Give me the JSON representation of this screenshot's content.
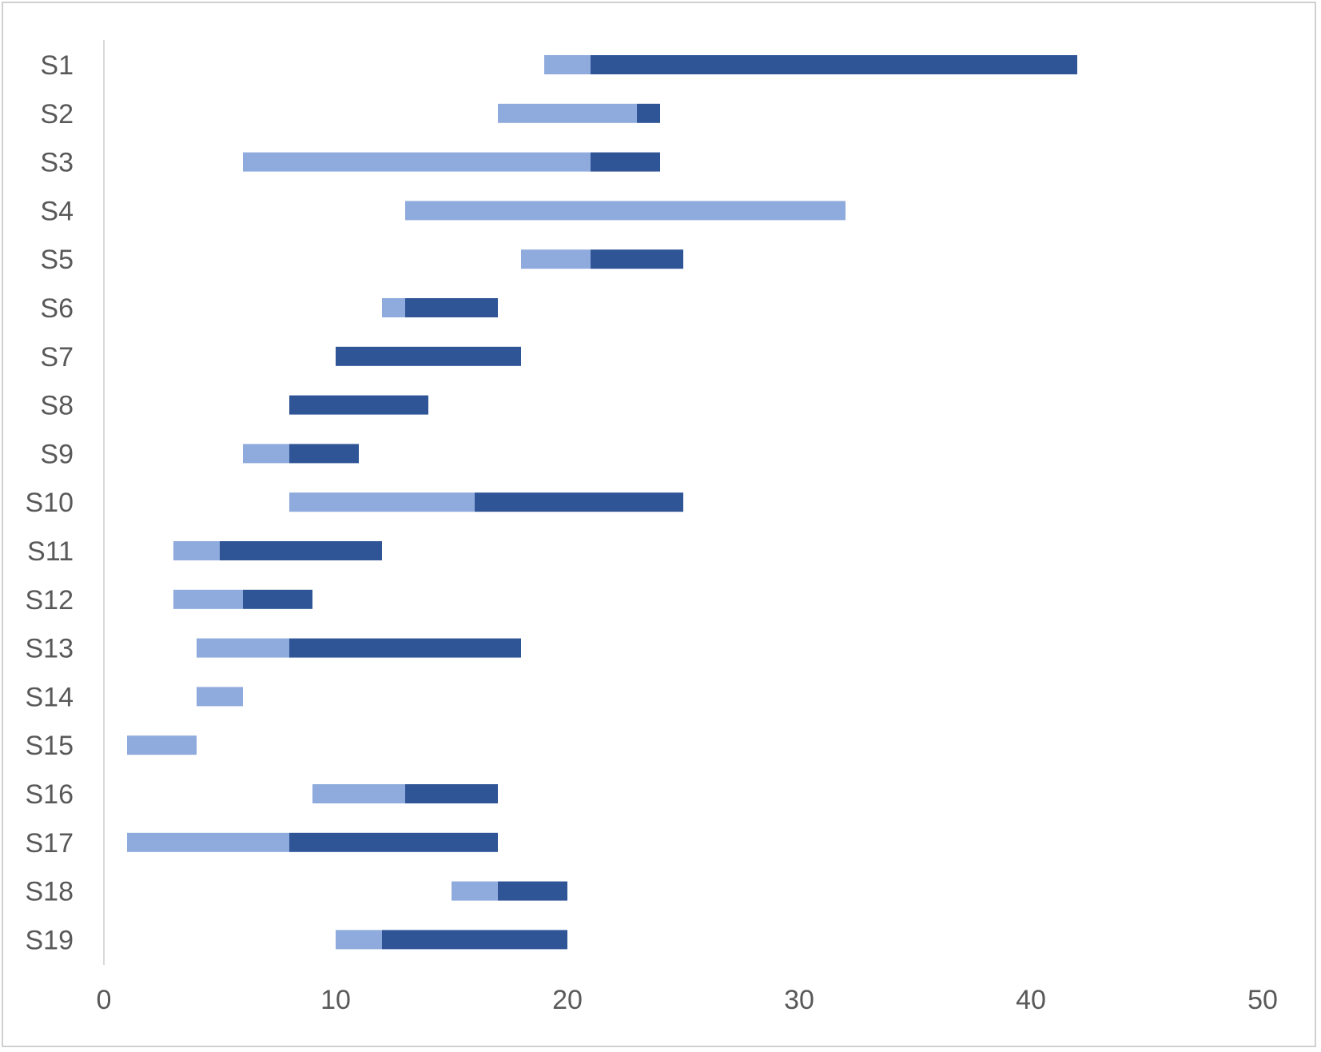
{
  "chart_data": {
    "type": "bar",
    "orientation": "horizontal",
    "stacked": true,
    "categories": [
      "S1",
      "S2",
      "S3",
      "S4",
      "S5",
      "S6",
      "S7",
      "S8",
      "S9",
      "S10",
      "S11",
      "S12",
      "S13",
      "S14",
      "S15",
      "S16",
      "S17",
      "S18",
      "S19"
    ],
    "series": [
      {
        "role": "offset",
        "values": [
          19,
          17,
          6,
          13,
          18,
          12,
          10,
          8,
          6,
          8,
          3,
          3,
          4,
          4,
          1,
          9,
          1,
          15,
          10
        ]
      },
      {
        "color": "#8FAADC",
        "values": [
          2,
          6,
          15,
          19,
          3,
          1,
          0,
          0,
          2,
          8,
          2,
          3,
          4,
          2,
          3,
          4,
          7,
          2,
          2
        ]
      },
      {
        "color": "#2F5597",
        "values": [
          21,
          1,
          3,
          0,
          4,
          4,
          8,
          6,
          3,
          9,
          7,
          3,
          10,
          0,
          0,
          4,
          9,
          3,
          8
        ]
      }
    ],
    "xlim": [
      0,
      50
    ],
    "xticks": [
      "0",
      "10",
      "20",
      "30",
      "40",
      "50"
    ],
    "title": "",
    "xlabel": "",
    "ylabel": "",
    "grid": false,
    "legend": "none"
  }
}
